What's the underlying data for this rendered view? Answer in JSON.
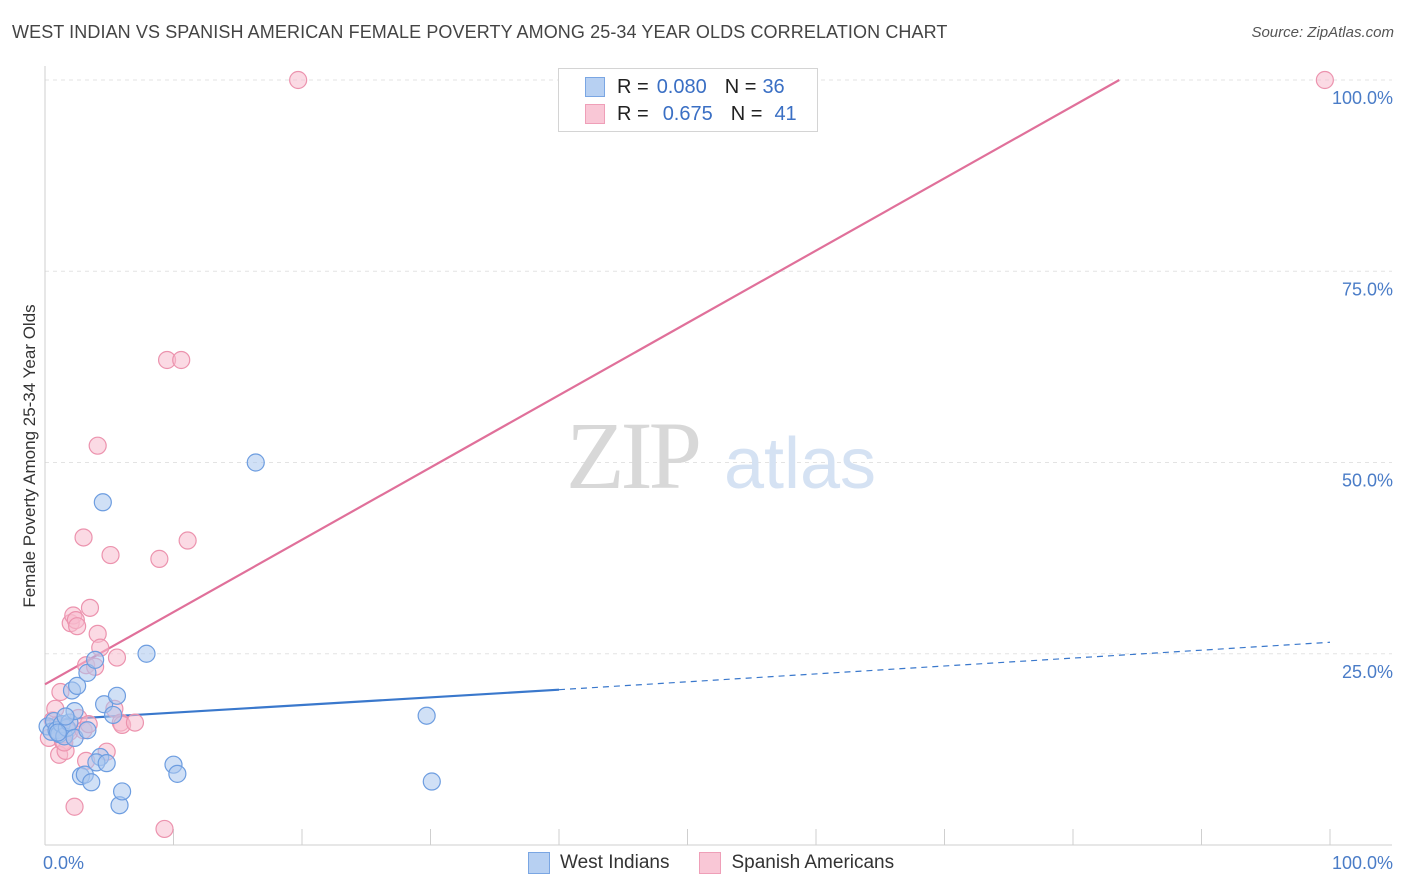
{
  "title": "WEST INDIAN VS SPANISH AMERICAN FEMALE POVERTY AMONG 25-34 YEAR OLDS CORRELATION CHART",
  "source": "Source: ZipAtlas.com",
  "watermark": {
    "zip": "ZIP",
    "atlas": "atlas"
  },
  "legend_top": {
    "rows": [
      {
        "r_label": "R = ",
        "r_value": "0.080",
        "n_label": "N = ",
        "n_value": "36"
      },
      {
        "r_label": "R = ",
        "r_value": "0.675",
        "n_label": "N = ",
        "n_value": "41"
      }
    ]
  },
  "legend_bottom": [
    "West Indians",
    "Spanish Americans"
  ],
  "colors": {
    "blue_fill": "#a9c6ef",
    "blue_stroke": "#6d9de0",
    "blue_line": "#3a78cc",
    "pink_fill": "#f7bccd",
    "pink_stroke": "#ec93ae",
    "pink_line": "#e0709a",
    "tick_text": "#4a7cc7",
    "grid": "#e3e3e3"
  },
  "chart_data": {
    "type": "scatter",
    "title": "WEST INDIAN VS SPANISH AMERICAN FEMALE POVERTY AMONG 25-34 YEAR OLDS CORRELATION CHART",
    "xlabel": "",
    "ylabel": "Female Poverty Among 25-34 Year Olds",
    "xlim": [
      0,
      100
    ],
    "ylim": [
      0,
      100
    ],
    "x_tick_labels": [
      "0.0%",
      "100.0%"
    ],
    "y_tick_labels": [
      {
        "value": 25,
        "label": "25.0%"
      },
      {
        "value": 50,
        "label": "50.0%"
      },
      {
        "value": 75,
        "label": "75.0%"
      },
      {
        "value": 100,
        "label": "100.0%"
      }
    ],
    "grid": true,
    "legend_position": "top-center",
    "series": [
      {
        "name": "West Indians",
        "r": 0.08,
        "n": 36,
        "trend": {
          "x0": 0,
          "y0": 16.3,
          "x1": 40,
          "y1": 20.3,
          "dash_to_x": 100,
          "dash_to_y": 26.5
        },
        "points": [
          [
            0.2,
            15.5
          ],
          [
            0.5,
            14.8
          ],
          [
            0.7,
            16.2
          ],
          [
            0.9,
            15.0
          ],
          [
            1.1,
            14.5
          ],
          [
            1.3,
            15.8
          ],
          [
            1.5,
            14.2
          ],
          [
            1.7,
            15.3
          ],
          [
            1.9,
            16.0
          ],
          [
            2.1,
            20.2
          ],
          [
            2.3,
            14.0
          ],
          [
            2.5,
            20.8
          ],
          [
            2.3,
            17.5
          ],
          [
            2.8,
            9.0
          ],
          [
            3.1,
            9.2
          ],
          [
            3.3,
            15.0
          ],
          [
            3.6,
            8.2
          ],
          [
            3.3,
            22.5
          ],
          [
            3.9,
            24.2
          ],
          [
            4.3,
            11.5
          ],
          [
            4.0,
            10.8
          ],
          [
            4.6,
            18.4
          ],
          [
            4.8,
            10.7
          ],
          [
            4.5,
            44.8
          ],
          [
            5.3,
            17.0
          ],
          [
            5.6,
            19.5
          ],
          [
            5.8,
            5.2
          ],
          [
            6.0,
            7.0
          ],
          [
            7.9,
            25.0
          ],
          [
            10.0,
            10.5
          ],
          [
            10.3,
            9.3
          ],
          [
            16.4,
            50.0
          ],
          [
            29.7,
            16.9
          ],
          [
            30.1,
            8.3
          ],
          [
            1.0,
            14.7
          ],
          [
            1.6,
            16.8
          ]
        ]
      },
      {
        "name": "Spanish Americans",
        "r": 0.675,
        "n": 41,
        "trend": {
          "x0": 0,
          "y0": 21.0,
          "x1": 83.6,
          "y1": 100
        },
        "points": [
          [
            0.3,
            14.0
          ],
          [
            0.6,
            16.3
          ],
          [
            0.8,
            17.8
          ],
          [
            1.0,
            15.7
          ],
          [
            1.2,
            20.0
          ],
          [
            1.4,
            13.5
          ],
          [
            1.1,
            11.8
          ],
          [
            1.6,
            12.3
          ],
          [
            1.8,
            15.1
          ],
          [
            1.9,
            14.8
          ],
          [
            2.0,
            29.0
          ],
          [
            2.2,
            30.0
          ],
          [
            2.4,
            29.4
          ],
          [
            2.3,
            5.0
          ],
          [
            2.6,
            16.6
          ],
          [
            2.5,
            28.6
          ],
          [
            3.0,
            15.0
          ],
          [
            3.2,
            23.5
          ],
          [
            3.2,
            11.0
          ],
          [
            3.0,
            40.2
          ],
          [
            3.4,
            15.8
          ],
          [
            3.5,
            31.0
          ],
          [
            3.9,
            23.3
          ],
          [
            4.1,
            27.6
          ],
          [
            4.1,
            52.2
          ],
          [
            4.3,
            25.8
          ],
          [
            4.8,
            12.2
          ],
          [
            5.1,
            37.9
          ],
          [
            5.4,
            17.8
          ],
          [
            5.6,
            24.5
          ],
          [
            5.9,
            16.0
          ],
          [
            6.0,
            15.7
          ],
          [
            7.0,
            16.0
          ],
          [
            8.9,
            37.4
          ],
          [
            9.3,
            2.1
          ],
          [
            9.5,
            63.4
          ],
          [
            10.6,
            63.4
          ],
          [
            11.1,
            39.8
          ],
          [
            19.7,
            100.0
          ],
          [
            99.6,
            100.0
          ],
          [
            1.5,
            13.4
          ]
        ]
      }
    ]
  }
}
